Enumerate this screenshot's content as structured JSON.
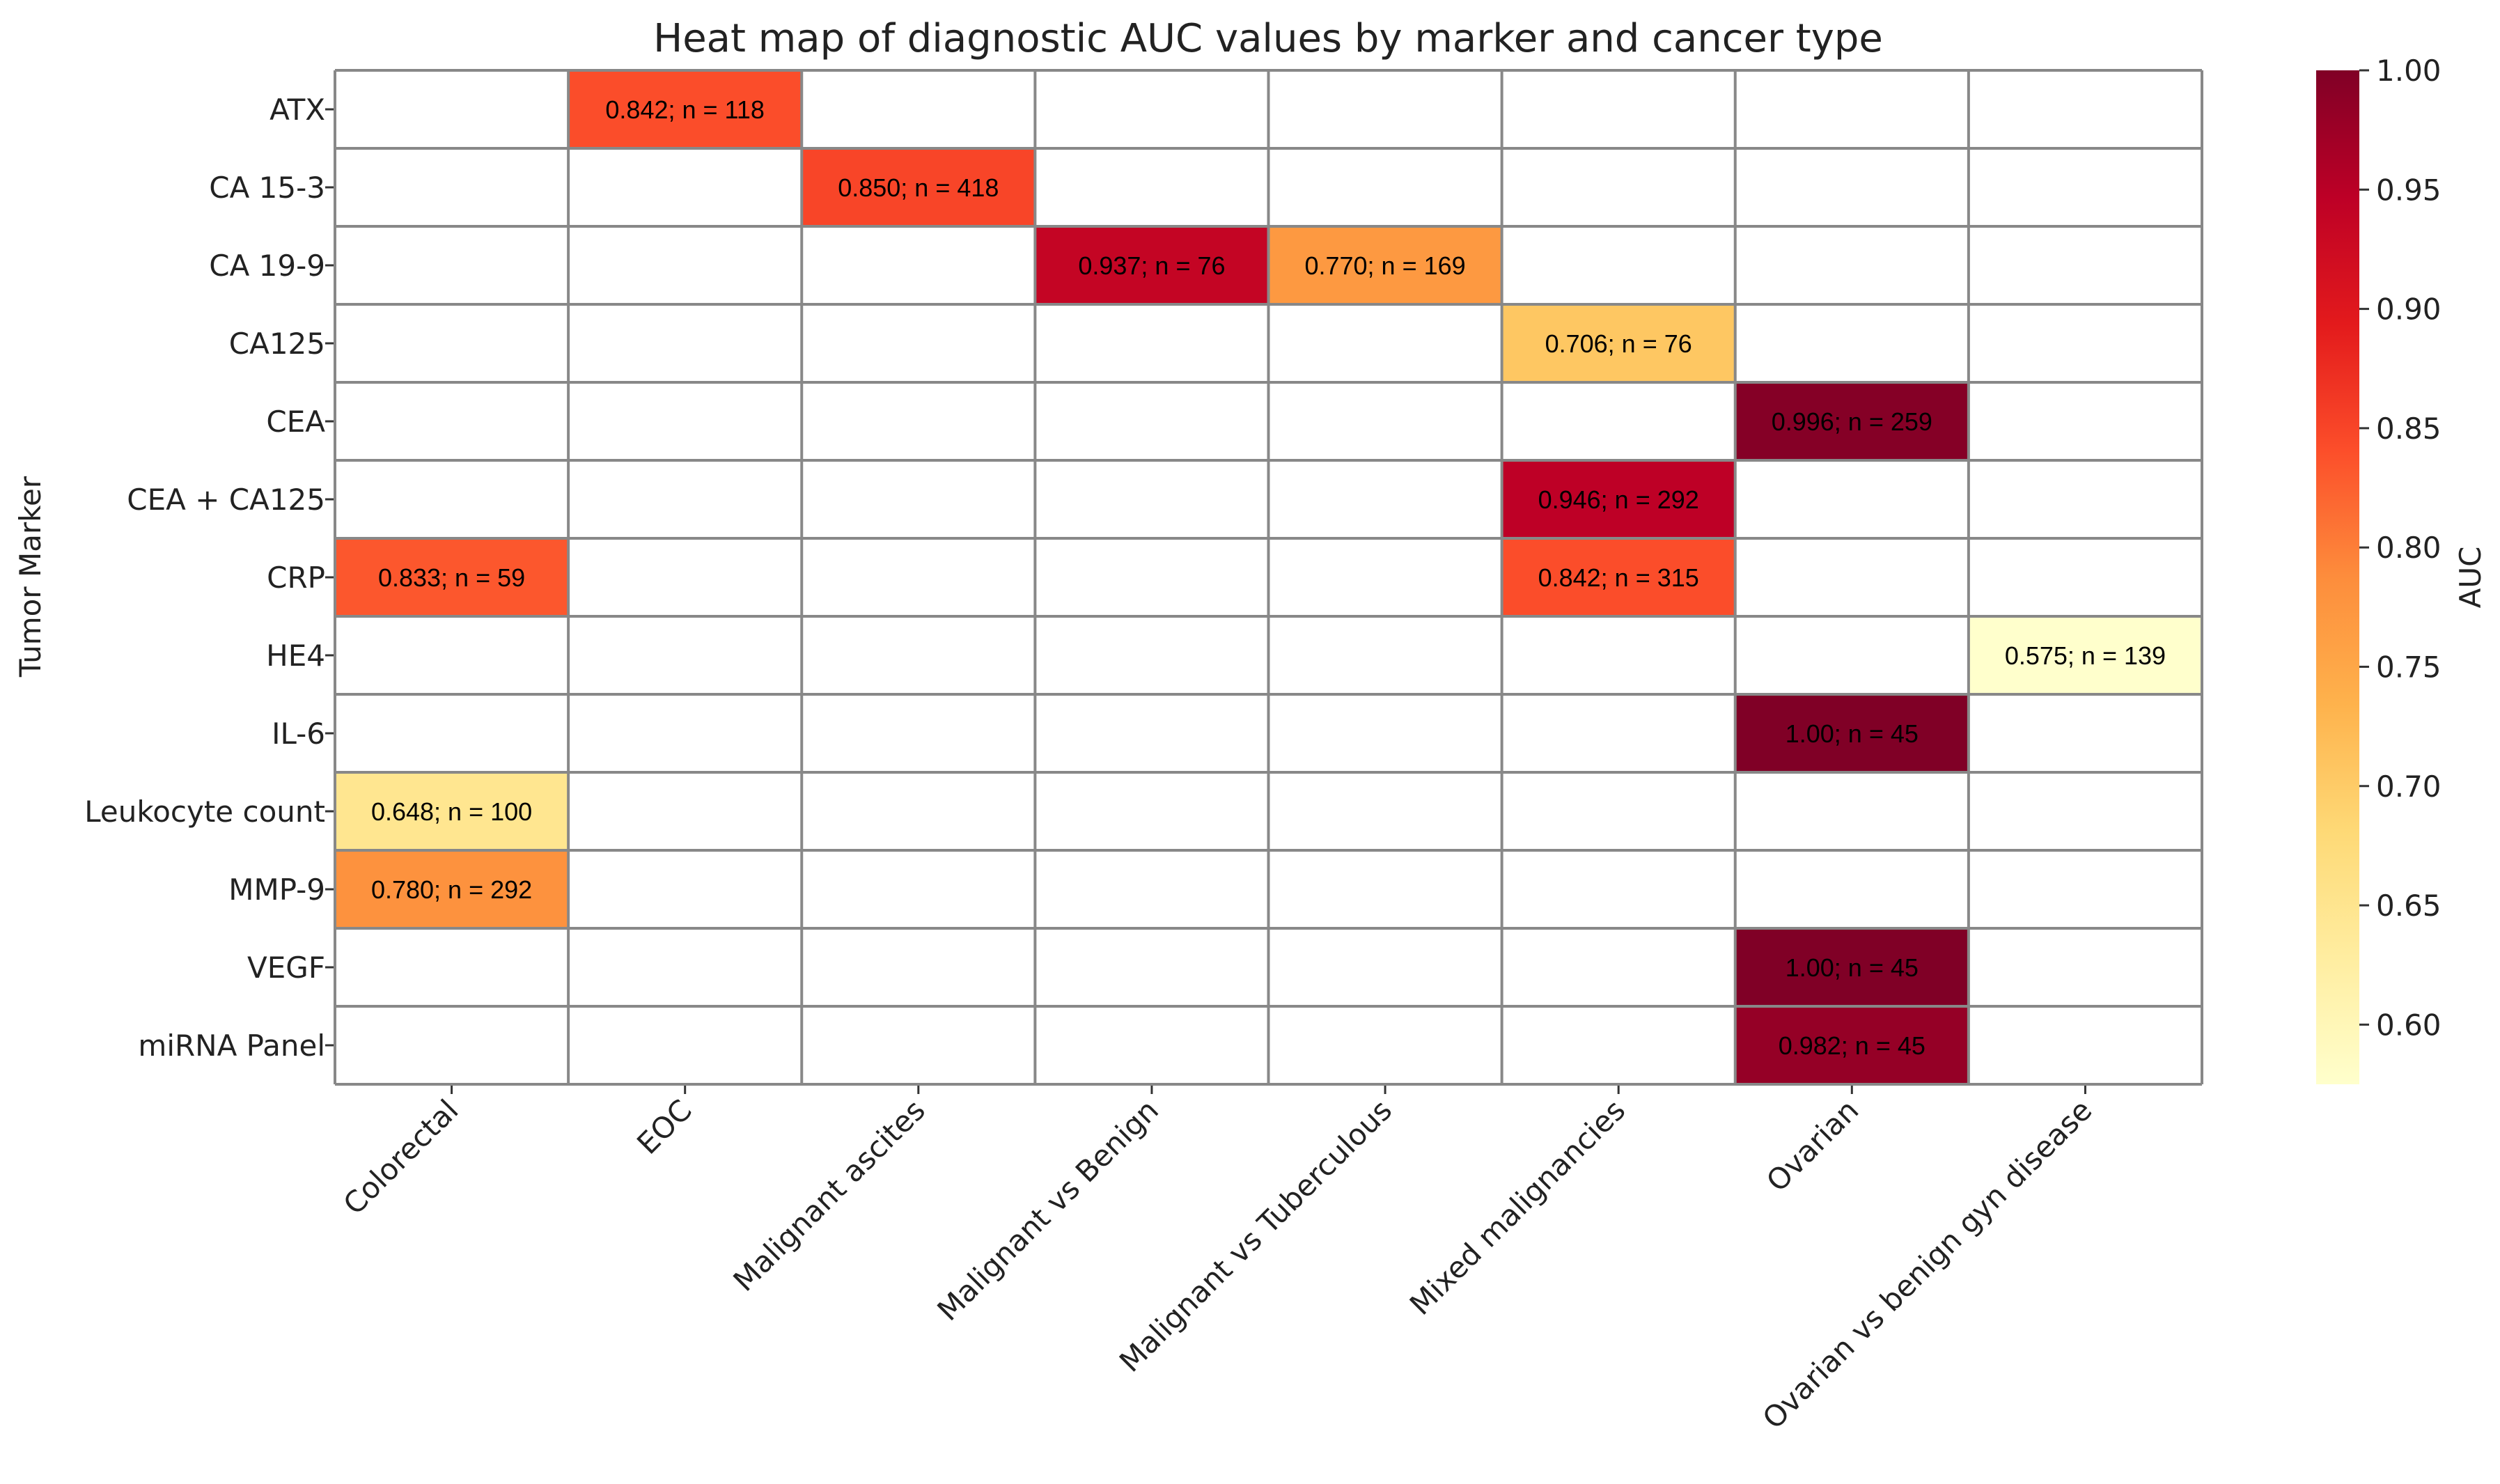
{
  "chart_data": {
    "type": "heatmap",
    "title": "Heat map of diagnostic AUC values by marker and cancer type",
    "xlabel": "",
    "ylabel": "Tumor Marker",
    "colorbar_label": "AUC",
    "colorbar_range": [
      0.575,
      1.0
    ],
    "colorbar_ticks": [
      "0.60",
      "0.65",
      "0.70",
      "0.75",
      "0.80",
      "0.85",
      "0.90",
      "0.95",
      "1.00"
    ],
    "colormap": [
      "#ffffcc",
      "#ffeda0",
      "#fed976",
      "#feb24c",
      "#fd8d3c",
      "#fc4e2a",
      "#e31a1c",
      "#bd0026",
      "#800026"
    ],
    "columns": [
      "Colorectal",
      "EOC",
      "Malignant ascites",
      "Malignant vs Benign",
      "Malignant vs Tuberculous",
      "Mixed malignancies",
      "Ovarian",
      "Ovarian vs benign gyn disease"
    ],
    "rows": [
      "ATX",
      "CA 15-3",
      "CA 19-9",
      "CA125",
      "CEA",
      "CEA + CA125",
      "CRP",
      "HE4",
      "IL-6",
      "Leukocyte count",
      "MMP-9",
      "VEGF",
      "miRNA Panel"
    ],
    "cells": [
      {
        "row": "ATX",
        "col": "EOC",
        "value": 0.842,
        "label": "0.842; n = 118"
      },
      {
        "row": "CA 15-3",
        "col": "Malignant ascites",
        "value": 0.85,
        "label": "0.850; n = 418"
      },
      {
        "row": "CA 19-9",
        "col": "Malignant vs Benign",
        "value": 0.937,
        "label": "0.937; n = 76"
      },
      {
        "row": "CA 19-9",
        "col": "Malignant vs Tuberculous",
        "value": 0.77,
        "label": "0.770; n = 169"
      },
      {
        "row": "CA125",
        "col": "Mixed malignancies",
        "value": 0.706,
        "label": "0.706; n = 76"
      },
      {
        "row": "CEA",
        "col": "Ovarian",
        "value": 0.996,
        "label": "0.996; n = 259"
      },
      {
        "row": "CEA + CA125",
        "col": "Mixed malignancies",
        "value": 0.946,
        "label": "0.946; n = 292"
      },
      {
        "row": "CRP",
        "col": "Colorectal",
        "value": 0.833,
        "label": "0.833; n = 59"
      },
      {
        "row": "CRP",
        "col": "Mixed malignancies",
        "value": 0.842,
        "label": "0.842; n = 315"
      },
      {
        "row": "HE4",
        "col": "Ovarian vs benign gyn disease",
        "value": 0.575,
        "label": "0.575; n = 139"
      },
      {
        "row": "IL-6",
        "col": "Ovarian",
        "value": 1.0,
        "label": "1.00; n = 45"
      },
      {
        "row": "Leukocyte count",
        "col": "Colorectal",
        "value": 0.648,
        "label": "0.648; n = 100"
      },
      {
        "row": "MMP-9",
        "col": "Colorectal",
        "value": 0.78,
        "label": "0.780; n = 292"
      },
      {
        "row": "VEGF",
        "col": "Ovarian",
        "value": 1.0,
        "label": "1.00; n = 45"
      },
      {
        "row": "miRNA Panel",
        "col": "Ovarian",
        "value": 0.982,
        "label": "0.982; n = 45"
      }
    ]
  }
}
